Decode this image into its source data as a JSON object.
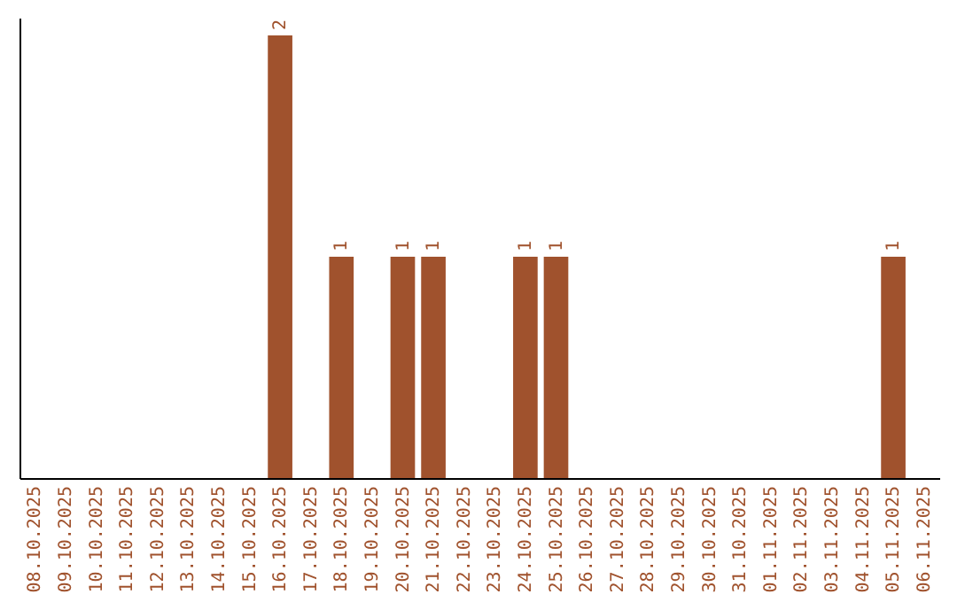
{
  "chart_data": {
    "type": "bar",
    "categories": [
      "08.10.2025",
      "09.10.2025",
      "10.10.2025",
      "11.10.2025",
      "12.10.2025",
      "13.10.2025",
      "14.10.2025",
      "15.10.2025",
      "16.10.2025",
      "17.10.2025",
      "18.10.2025",
      "19.10.2025",
      "20.10.2025",
      "21.10.2025",
      "22.10.2025",
      "23.10.2025",
      "24.10.2025",
      "25.10.2025",
      "26.10.2025",
      "27.10.2025",
      "28.10.2025",
      "29.10.2025",
      "30.10.2025",
      "31.10.2025",
      "01.11.2025",
      "02.11.2025",
      "03.11.2025",
      "04.11.2025",
      "05.11.2025",
      "06.11.2025"
    ],
    "values": [
      0,
      0,
      0,
      0,
      0,
      0,
      0,
      0,
      2,
      0,
      1,
      0,
      1,
      1,
      0,
      0,
      1,
      1,
      0,
      0,
      0,
      0,
      0,
      0,
      0,
      0,
      0,
      0,
      1,
      0
    ],
    "value_labels": [
      null,
      null,
      null,
      null,
      null,
      null,
      null,
      null,
      "2",
      null,
      "1",
      null,
      "1",
      "1",
      null,
      null,
      "1",
      "1",
      null,
      null,
      null,
      null,
      null,
      null,
      null,
      null,
      null,
      null,
      "1",
      null
    ],
    "color": "#a0522d",
    "ylim": [
      0,
      2.08
    ],
    "tick_labels": "x",
    "grid": false
  }
}
